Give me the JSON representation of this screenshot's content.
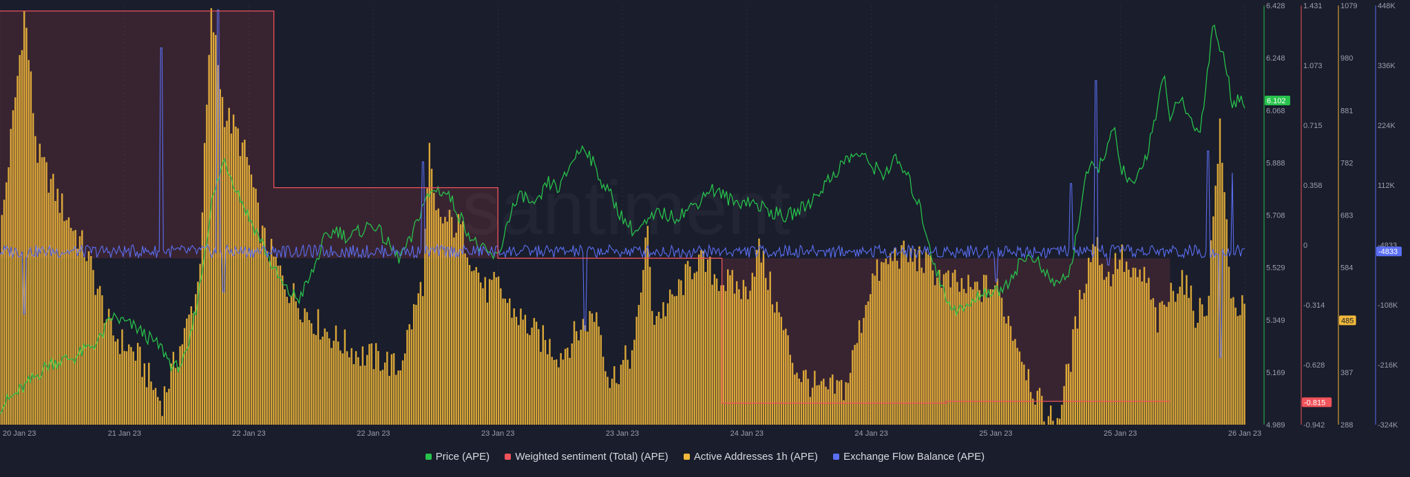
{
  "chart_data": {
    "type": "line",
    "watermark": "·santiment·",
    "x_axis": {
      "ticks": [
        "20 Jan 23",
        "21 Jan 23",
        "22 Jan 23",
        "22 Jan 23",
        "23 Jan 23",
        "23 Jan 23",
        "24 Jan 23",
        "24 Jan 23",
        "25 Jan 23",
        "25 Jan 23",
        "26 Jan 23"
      ]
    },
    "axes": {
      "price": {
        "ticks": [
          "6.428",
          "6.248",
          "6.068",
          "5.888",
          "5.708",
          "5.529",
          "5.349",
          "5.169",
          "4.989"
        ],
        "range": [
          4.989,
          6.428
        ],
        "current_label": "6.102",
        "current_value": 6.102
      },
      "sentiment": {
        "ticks": [
          "1.431",
          "1.073",
          "0.715",
          "0.358",
          "0",
          "-0.314",
          "-0.628",
          "-0.942"
        ],
        "range": [
          -0.942,
          1.431
        ],
        "current_label": "-0.815",
        "current_value": -0.815
      },
      "active_addresses": {
        "ticks": [
          "1079",
          "980",
          "881",
          "782",
          "683",
          "584",
          "485",
          "387",
          "288"
        ],
        "range": [
          288,
          1079
        ],
        "current_label": "485",
        "current_value": 485
      },
      "exchange_flow": {
        "ticks": [
          "448K",
          "336K",
          "224K",
          "112K",
          "-4833",
          "-108K",
          "-216K",
          "-324K"
        ],
        "range": [
          -324000,
          448000
        ],
        "current_label": "-4833",
        "current_value": -4833
      }
    },
    "series": [
      {
        "name": "Price (APE)",
        "color": "#27c24c",
        "type": "line",
        "axis": "price",
        "points": [
          [
            0,
            5.05
          ],
          [
            0.02,
            5.12
          ],
          [
            0.04,
            5.2
          ],
          [
            0.06,
            5.22
          ],
          [
            0.08,
            5.28
          ],
          [
            0.09,
            5.36
          ],
          [
            0.11,
            5.32
          ],
          [
            0.13,
            5.25
          ],
          [
            0.14,
            5.18
          ],
          [
            0.15,
            5.22
          ],
          [
            0.16,
            5.45
          ],
          [
            0.17,
            5.75
          ],
          [
            0.18,
            5.9
          ],
          [
            0.19,
            5.8
          ],
          [
            0.2,
            5.7
          ],
          [
            0.21,
            5.62
          ],
          [
            0.22,
            5.52
          ],
          [
            0.23,
            5.45
          ],
          [
            0.24,
            5.42
          ],
          [
            0.25,
            5.5
          ],
          [
            0.26,
            5.62
          ],
          [
            0.27,
            5.66
          ],
          [
            0.28,
            5.63
          ],
          [
            0.3,
            5.68
          ],
          [
            0.31,
            5.62
          ],
          [
            0.32,
            5.56
          ],
          [
            0.33,
            5.62
          ],
          [
            0.34,
            5.75
          ],
          [
            0.35,
            5.8
          ],
          [
            0.36,
            5.78
          ],
          [
            0.37,
            5.7
          ],
          [
            0.38,
            5.62
          ],
          [
            0.39,
            5.58
          ],
          [
            0.4,
            5.56
          ],
          [
            0.41,
            5.72
          ],
          [
            0.42,
            5.78
          ],
          [
            0.43,
            5.73
          ],
          [
            0.44,
            5.82
          ],
          [
            0.45,
            5.8
          ],
          [
            0.46,
            5.9
          ],
          [
            0.47,
            5.95
          ],
          [
            0.48,
            5.85
          ],
          [
            0.49,
            5.78
          ],
          [
            0.5,
            5.7
          ],
          [
            0.51,
            5.65
          ],
          [
            0.52,
            5.68
          ],
          [
            0.53,
            5.72
          ],
          [
            0.54,
            5.7
          ],
          [
            0.55,
            5.72
          ],
          [
            0.56,
            5.75
          ],
          [
            0.57,
            5.8
          ],
          [
            0.58,
            5.78
          ],
          [
            0.59,
            5.75
          ],
          [
            0.6,
            5.76
          ],
          [
            0.61,
            5.74
          ],
          [
            0.62,
            5.72
          ],
          [
            0.63,
            5.7
          ],
          [
            0.64,
            5.72
          ],
          [
            0.65,
            5.75
          ],
          [
            0.66,
            5.8
          ],
          [
            0.67,
            5.85
          ],
          [
            0.68,
            5.9
          ],
          [
            0.69,
            5.92
          ],
          [
            0.7,
            5.88
          ],
          [
            0.71,
            5.85
          ],
          [
            0.72,
            5.9
          ],
          [
            0.73,
            5.83
          ],
          [
            0.74,
            5.72
          ],
          [
            0.75,
            5.55
          ],
          [
            0.76,
            5.42
          ],
          [
            0.77,
            5.38
          ],
          [
            0.78,
            5.4
          ],
          [
            0.79,
            5.45
          ],
          [
            0.8,
            5.44
          ],
          [
            0.81,
            5.48
          ],
          [
            0.82,
            5.55
          ],
          [
            0.83,
            5.57
          ],
          [
            0.84,
            5.5
          ],
          [
            0.85,
            5.47
          ],
          [
            0.86,
            5.52
          ],
          [
            0.87,
            5.78
          ],
          [
            0.875,
            5.88
          ],
          [
            0.88,
            5.85
          ],
          [
            0.89,
            5.95
          ],
          [
            0.895,
            6.0
          ],
          [
            0.9,
            5.88
          ],
          [
            0.91,
            5.8
          ],
          [
            0.92,
            5.9
          ],
          [
            0.93,
            6.08
          ],
          [
            0.935,
            6.18
          ],
          [
            0.94,
            6.05
          ],
          [
            0.95,
            6.1
          ],
          [
            0.96,
            6.0
          ],
          [
            0.965,
            6.02
          ],
          [
            0.97,
            6.2
          ],
          [
            0.975,
            6.38
          ],
          [
            0.98,
            6.28
          ],
          [
            0.985,
            6.22
          ],
          [
            0.99,
            6.1
          ],
          [
            1.0,
            6.1
          ]
        ]
      },
      {
        "name": "Weighted sentiment (Total) (APE)",
        "color": "#f0535b",
        "type": "step",
        "axis": "sentiment",
        "points": [
          [
            0,
            1.4
          ],
          [
            0.22,
            1.4
          ],
          [
            0.22,
            0.4
          ],
          [
            0.4,
            0.4
          ],
          [
            0.4,
            0.0
          ],
          [
            0.58,
            0.0
          ],
          [
            0.58,
            -0.82
          ],
          [
            0.76,
            -0.82
          ],
          [
            0.76,
            -0.81
          ],
          [
            0.94,
            -0.81
          ]
        ]
      },
      {
        "name": "Active Addresses 1h (APE)",
        "color": "#f1b83a",
        "type": "bar",
        "axis": "active_addresses",
        "points": [
          [
            0,
            630
          ],
          [
            0.02,
            1070
          ],
          [
            0.03,
            800
          ],
          [
            0.05,
            700
          ],
          [
            0.07,
            610
          ],
          [
            0.09,
            460
          ],
          [
            0.11,
            420
          ],
          [
            0.13,
            330
          ],
          [
            0.15,
            470
          ],
          [
            0.16,
            560
          ],
          [
            0.17,
            1070
          ],
          [
            0.18,
            880
          ],
          [
            0.19,
            840
          ],
          [
            0.2,
            780
          ],
          [
            0.21,
            650
          ],
          [
            0.23,
            550
          ],
          [
            0.25,
            490
          ],
          [
            0.27,
            450
          ],
          [
            0.29,
            420
          ],
          [
            0.31,
            410
          ],
          [
            0.32,
            390
          ],
          [
            0.34,
            560
          ],
          [
            0.345,
            800
          ],
          [
            0.35,
            680
          ],
          [
            0.37,
            660
          ],
          [
            0.39,
            540
          ],
          [
            0.4,
            550
          ],
          [
            0.41,
            510
          ],
          [
            0.43,
            460
          ],
          [
            0.45,
            420
          ],
          [
            0.47,
            480
          ],
          [
            0.48,
            500
          ],
          [
            0.49,
            370
          ],
          [
            0.51,
            430
          ],
          [
            0.52,
            660
          ],
          [
            0.525,
            490
          ],
          [
            0.54,
            520
          ],
          [
            0.56,
            600
          ],
          [
            0.58,
            560
          ],
          [
            0.6,
            540
          ],
          [
            0.61,
            620
          ],
          [
            0.62,
            540
          ],
          [
            0.64,
            390
          ],
          [
            0.66,
            350
          ],
          [
            0.68,
            360
          ],
          [
            0.7,
            560
          ],
          [
            0.72,
            610
          ],
          [
            0.74,
            600
          ],
          [
            0.76,
            560
          ],
          [
            0.78,
            540
          ],
          [
            0.8,
            550
          ],
          [
            0.82,
            430
          ],
          [
            0.83,
            360
          ],
          [
            0.84,
            300
          ],
          [
            0.85,
            300
          ],
          [
            0.86,
            410
          ],
          [
            0.87,
            550
          ],
          [
            0.88,
            640
          ],
          [
            0.89,
            560
          ],
          [
            0.9,
            610
          ],
          [
            0.91,
            560
          ],
          [
            0.92,
            570
          ],
          [
            0.93,
            480
          ],
          [
            0.94,
            530
          ],
          [
            0.95,
            570
          ],
          [
            0.96,
            500
          ],
          [
            0.97,
            510
          ],
          [
            0.98,
            850
          ],
          [
            0.99,
            520
          ],
          [
            1.0,
            500
          ]
        ]
      },
      {
        "name": "Exchange Flow Balance (APE)",
        "color": "#5b6ff5",
        "type": "line",
        "axis": "exchange_flow",
        "baseline": -4833,
        "spikes": [
          [
            0.02,
            -120000
          ],
          [
            0.13,
            370000
          ],
          [
            0.175,
            440000
          ],
          [
            0.18,
            -80000
          ],
          [
            0.47,
            -150000
          ],
          [
            0.34,
            160000
          ],
          [
            0.8,
            -60000
          ],
          [
            0.88,
            310000
          ],
          [
            0.86,
            120000
          ],
          [
            0.89,
            -30000
          ],
          [
            0.97,
            180000
          ],
          [
            0.98,
            -200000
          ],
          [
            0.99,
            140000
          ]
        ]
      }
    ],
    "legend": [
      "Price (APE)",
      "Weighted sentiment (Total) (APE)",
      "Active Addresses 1h (APE)",
      "Exchange Flow Balance (APE)"
    ]
  }
}
